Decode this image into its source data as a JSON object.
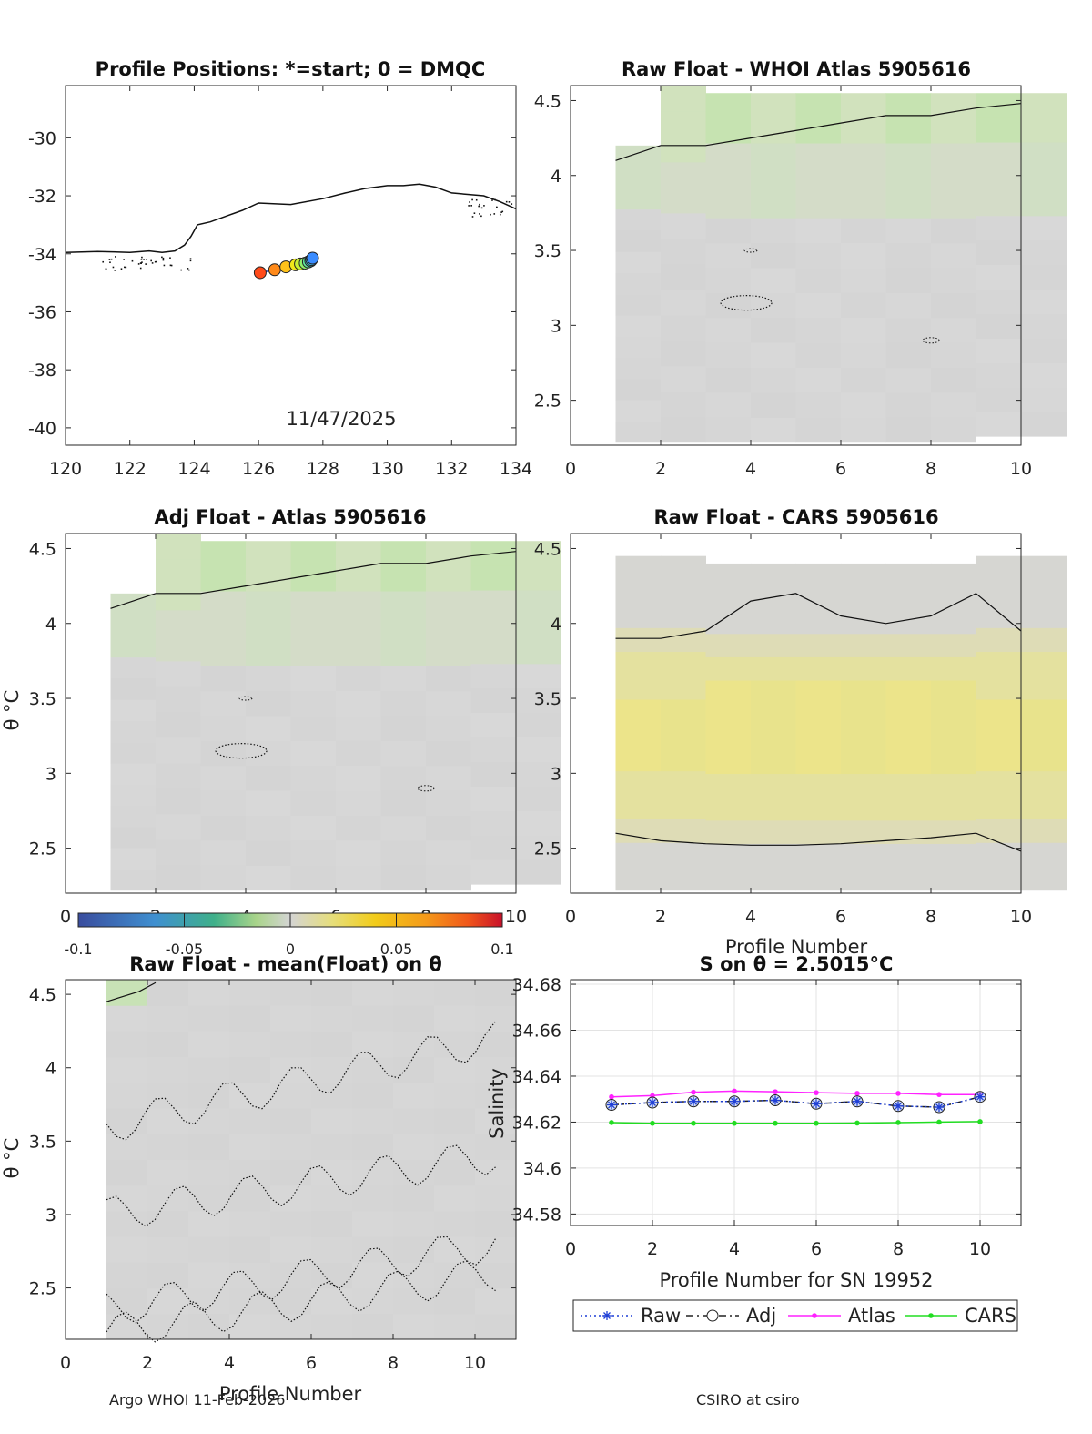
{
  "panels": {
    "map": {
      "title": "Profile Positions: *=start; 0 = DMQC",
      "date_label": "11/47/2025"
    },
    "raw_atlas": {
      "title": "Raw Float - WHOI Atlas  5905616"
    },
    "adj_atlas": {
      "title": "Adj Float - Atlas  5905616",
      "ylabel": "θ °C"
    },
    "raw_cars": {
      "title": "Raw Float - CARS  5905616",
      "xlabel": "Profile Number"
    },
    "raw_mean": {
      "title": "Raw Float - mean(Float) on θ",
      "ylabel": "θ °C",
      "xlabel": "Profile Number"
    },
    "salinity": {
      "title": "S on θ = 2.5015°C",
      "ylabel": "Salinity",
      "xlabel": "Profile Number for SN 19952"
    }
  },
  "colorbar": {
    "ticks": [
      "-0.1",
      "-0.05",
      "0",
      "0.05",
      "0.1"
    ]
  },
  "footer": {
    "left": "Argo WHOI 11-Feb-2026",
    "right": "CSIRO at csiro"
  },
  "chart_data": [
    {
      "type": "scatter",
      "title": "Profile Positions: *=start; 0 = DMQC",
      "xlim": [
        120,
        134
      ],
      "ylim": [
        -40.6,
        -28.2
      ],
      "x_ticks": [
        "120",
        "122",
        "124",
        "126",
        "128",
        "130",
        "132",
        "134"
      ],
      "y_ticks": [
        "-30",
        "-32",
        "-34",
        "-36",
        "-38",
        "-40"
      ],
      "coast_lon": [
        120,
        121,
        122,
        122.6,
        123,
        123.4,
        123.7,
        123.9,
        124.1,
        124.5,
        125,
        125.5,
        126,
        127,
        128,
        128.7,
        129.3,
        130,
        130.5,
        131,
        131.5,
        132,
        132.5,
        133,
        133.5,
        134
      ],
      "coast_lat": [
        -33.95,
        -33.92,
        -33.95,
        -33.9,
        -33.95,
        -33.9,
        -33.7,
        -33.4,
        -33.0,
        -32.9,
        -32.7,
        -32.5,
        -32.25,
        -32.3,
        -32.1,
        -31.9,
        -31.75,
        -31.65,
        -31.65,
        -31.6,
        -31.7,
        -31.9,
        -31.95,
        -32.0,
        -32.2,
        -32.45
      ],
      "lon": [
        126.05,
        126.5,
        126.85,
        127.15,
        127.3,
        127.45,
        127.55,
        127.62,
        127.65,
        127.68
      ],
      "lat": [
        -34.65,
        -34.55,
        -34.45,
        -34.38,
        -34.35,
        -34.32,
        -34.28,
        -34.24,
        -34.2,
        -34.15
      ],
      "date": "11/47/2025"
    },
    {
      "type": "heatmap",
      "title": "Raw Float - WHOI Atlas  5905616",
      "xlim": [
        0,
        10
      ],
      "ylim": [
        2.2,
        4.6
      ],
      "x_ticks": [
        "0",
        "2",
        "4",
        "6",
        "8",
        "10"
      ],
      "y_ticks": [
        "4.5",
        "4",
        "3.5",
        "3",
        "2.5"
      ],
      "profiles": [
        1,
        2,
        3,
        4,
        5,
        6,
        7,
        8,
        9,
        10
      ],
      "theta_top": [
        4.2,
        4.6,
        4.55,
        4.55,
        4.55,
        4.55,
        4.55,
        4.55,
        4.55,
        4.55
      ],
      "theta_bottom": [
        2.22,
        2.22,
        2.22,
        2.22,
        2.22,
        2.22,
        2.22,
        2.22,
        2.26,
        2.26
      ],
      "contour_theta": [
        4.1,
        4.2,
        4.2,
        4.25,
        4.3,
        4.35,
        4.4,
        4.4,
        4.45,
        4.48
      ]
    },
    {
      "type": "heatmap",
      "title": "Adj Float - Atlas  5905616",
      "xlim": [
        0,
        10
      ],
      "ylim": [
        2.2,
        4.6
      ],
      "x_ticks": [
        "0",
        "2",
        "4",
        "6",
        "8",
        "10"
      ],
      "y_ticks": [
        "4.5",
        "4",
        "3.5",
        "3",
        "2.5"
      ],
      "ylabel": "θ °C",
      "profiles": [
        1,
        2,
        3,
        4,
        5,
        6,
        7,
        8,
        9,
        10
      ],
      "theta_top": [
        4.2,
        4.6,
        4.55,
        4.55,
        4.55,
        4.55,
        4.55,
        4.55,
        4.55,
        4.55
      ],
      "theta_bottom": [
        2.22,
        2.22,
        2.22,
        2.22,
        2.22,
        2.22,
        2.22,
        2.22,
        2.26,
        2.26
      ],
      "contour_theta": [
        4.1,
        4.2,
        4.2,
        4.25,
        4.3,
        4.35,
        4.4,
        4.4,
        4.45,
        4.48
      ]
    },
    {
      "type": "heatmap",
      "title": "Raw Float - CARS  5905616",
      "xlim": [
        0,
        10
      ],
      "ylim": [
        2.2,
        4.6
      ],
      "x_ticks": [
        "0",
        "2",
        "4",
        "6",
        "8",
        "10"
      ],
      "y_ticks": [
        "4.5",
        "4",
        "3.5",
        "3",
        "2.5"
      ],
      "xlabel": "Profile Number",
      "profiles": [
        1,
        2,
        3,
        4,
        5,
        6,
        7,
        8,
        9,
        10
      ],
      "theta_top": [
        4.45,
        4.45,
        4.4,
        4.4,
        4.4,
        4.4,
        4.4,
        4.4,
        4.45,
        4.45
      ],
      "theta_bottom": [
        2.22,
        2.22,
        2.22,
        2.22,
        2.22,
        2.22,
        2.22,
        2.22,
        2.22,
        2.22
      ],
      "contour_upper": [
        3.9,
        3.9,
        3.95,
        4.15,
        4.2,
        4.05,
        4.0,
        4.05,
        4.2,
        3.95
      ],
      "contour_lower": [
        2.6,
        2.55,
        2.53,
        2.52,
        2.52,
        2.53,
        2.55,
        2.57,
        2.6,
        2.48
      ]
    },
    {
      "type": "heatmap",
      "title": "Raw Float - mean(Float) on θ",
      "xlim": [
        0,
        11
      ],
      "ylim": [
        2.15,
        4.6
      ],
      "x_ticks": [
        "0",
        "2",
        "4",
        "6",
        "8",
        "10"
      ],
      "y_ticks": [
        "4.5",
        "4",
        "3.5",
        "3",
        "2.5"
      ],
      "ylabel": "θ °C",
      "xlabel": "Profile Number",
      "profiles": [
        1,
        2,
        3,
        4,
        5,
        6,
        7,
        8,
        9,
        10
      ]
    },
    {
      "type": "line",
      "title": "S on θ = 2.5015°C",
      "xlabel": "Profile Number for SN 19952",
      "ylabel": "Salinity",
      "xlim": [
        0,
        11
      ],
      "ylim": [
        34.575,
        34.682
      ],
      "x_ticks": [
        "0",
        "2",
        "4",
        "6",
        "8",
        "10"
      ],
      "y_ticks": [
        "34.68",
        "34.66",
        "34.64",
        "34.62",
        "34.6",
        "34.58"
      ],
      "x": [
        1,
        2,
        3,
        4,
        5,
        6,
        7,
        8,
        9,
        10
      ],
      "series": [
        {
          "name": "Raw",
          "values": [
            34.6275,
            34.6285,
            34.629,
            34.629,
            34.6295,
            34.628,
            34.629,
            34.627,
            34.6265,
            34.631
          ],
          "color": "#1f3fd6"
        },
        {
          "name": "Adj",
          "values": [
            34.6275,
            34.6285,
            34.629,
            34.629,
            34.6295,
            34.628,
            34.629,
            34.627,
            34.6265,
            34.631
          ],
          "color": "#222222"
        },
        {
          "name": "Atlas",
          "values": [
            34.631,
            34.6315,
            34.633,
            34.6335,
            34.6332,
            34.6328,
            34.6325,
            34.6325,
            34.632,
            34.632
          ],
          "color": "#ff22ff"
        },
        {
          "name": "CARS",
          "values": [
            34.6198,
            34.6195,
            34.6195,
            34.6195,
            34.6195,
            34.6195,
            34.6196,
            34.6198,
            34.62,
            34.6202
          ],
          "color": "#22dd22"
        }
      ],
      "legend": [
        "Raw",
        "Adj",
        "Atlas",
        "CARS"
      ]
    }
  ]
}
